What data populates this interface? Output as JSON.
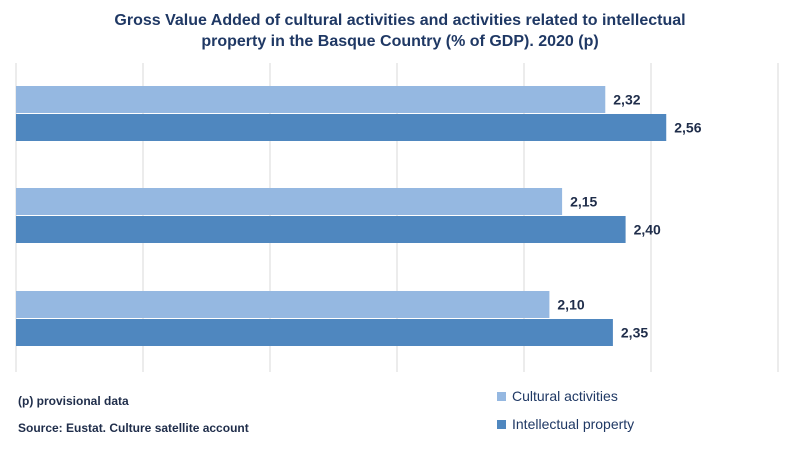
{
  "title_lines": [
    "Gross Value Added of cultural activities and activities related to intellectual",
    "property in the Basque Country (% of GDP). 2020 (p)"
  ],
  "footnotes": {
    "provisional": "(p) provisional data",
    "source": "Source: Eustat. Culture satellite account"
  },
  "colors": {
    "cultural": "#95b8e1",
    "intellectual": "#4f87bf",
    "label": "#1f2d4a",
    "grid": "#d9d9d9"
  },
  "chart_data": {
    "type": "bar",
    "orientation": "horizontal",
    "categories": [
      "",
      "",
      ""
    ],
    "series": [
      {
        "name": "Cultural activities",
        "values": [
          2.32,
          2.15,
          2.1
        ],
        "labels": [
          "2,32",
          "2,15",
          "2,10"
        ]
      },
      {
        "name": "Intellectual property",
        "values": [
          2.56,
          2.4,
          2.35
        ],
        "labels": [
          "2,56",
          "2,40",
          "2,35"
        ]
      }
    ],
    "xlim": [
      0,
      3
    ],
    "grid": true,
    "legend_position": "bottom-right"
  }
}
